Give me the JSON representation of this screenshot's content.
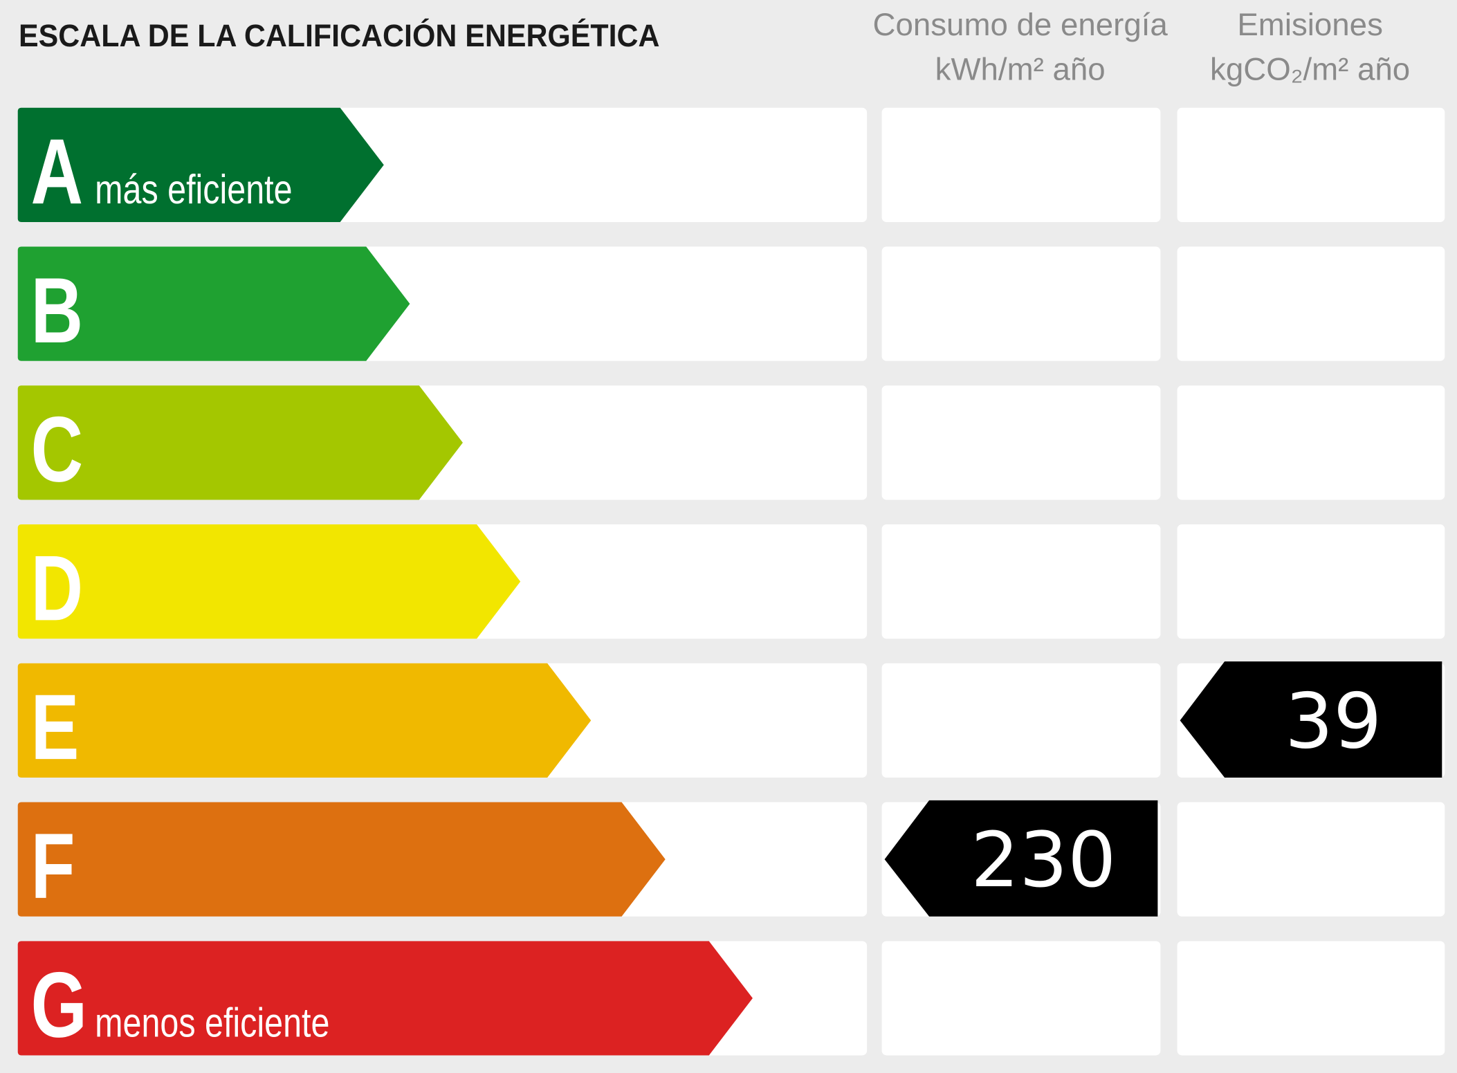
{
  "title": "ESCALA DE LA CALIFICACIÓN ENERGÉTICA",
  "columns": {
    "energy": {
      "label": "Consumo de energía",
      "unit": "kWh/m² año"
    },
    "emissions": {
      "label": "Emisiones",
      "unit": "kgCO₂/m² año"
    }
  },
  "ratings": [
    {
      "letter": "A",
      "label": "más eficiente",
      "color": "#00702f"
    },
    {
      "letter": "B",
      "color": "#1fa131"
    },
    {
      "letter": "C",
      "color": "#a4c700"
    },
    {
      "letter": "D",
      "color": "#f2e600"
    },
    {
      "letter": "E",
      "color": "#f0b900"
    },
    {
      "letter": "F",
      "color": "#dd7010"
    },
    {
      "letter": "G",
      "label": "menos eficiente",
      "color": "#dc2222"
    }
  ],
  "energy": {
    "value": 230,
    "rating": "F"
  },
  "emissions": {
    "value": 39,
    "rating": "E"
  }
}
